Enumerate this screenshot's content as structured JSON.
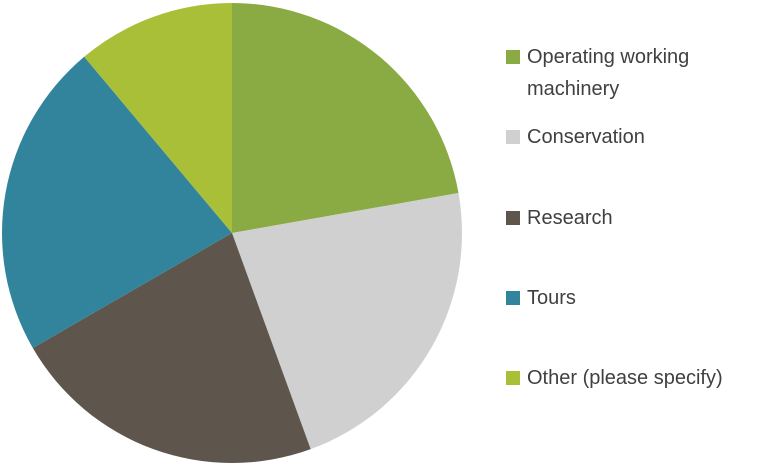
{
  "chart_data": {
    "type": "pie",
    "categories": [
      "Operating working machinery",
      "Conservation",
      "Research",
      "Tours",
      "Other (please specify)"
    ],
    "values": [
      22.2,
      22.2,
      22.2,
      22.2,
      11.1
    ],
    "colors": [
      "#8aab44",
      "#d0d0d0",
      "#5e554c",
      "#31849b",
      "#a9bf38"
    ],
    "legend": "right"
  }
}
